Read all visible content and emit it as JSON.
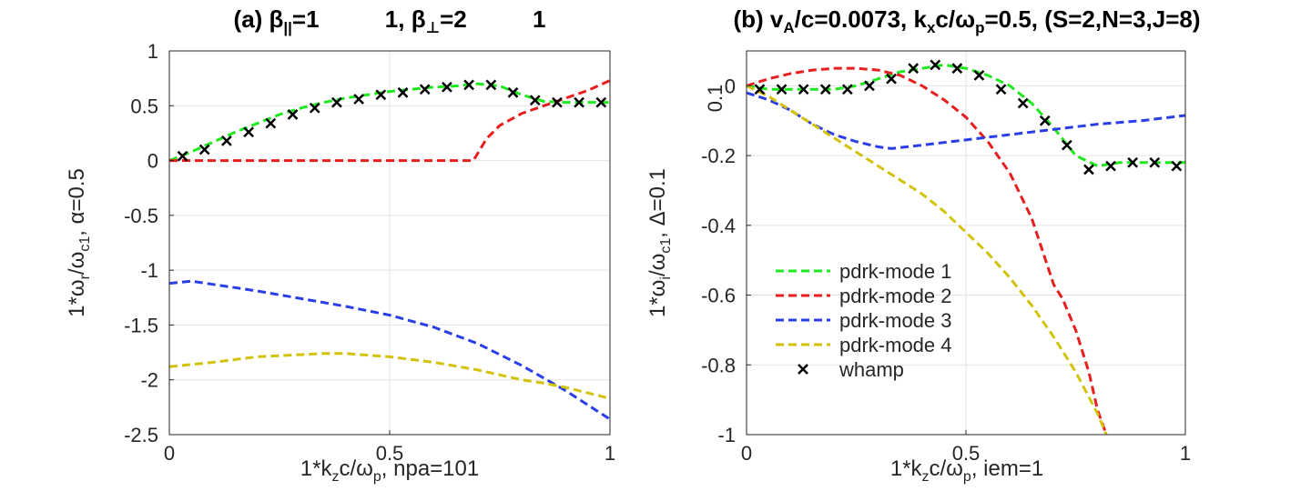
{
  "chart_data": [
    {
      "type": "line",
      "title": "(a) β||=1          1, β⊥=2          1",
      "title_parts": {
        "p1": "(a) β",
        "sub1": "||",
        "p2": "=1          1, β",
        "sub2": "⊥",
        "p3": "=2          1"
      },
      "xlabel": "1*k_z c/ω_p, npa=101",
      "xlabel_parts": {
        "p1": "1*k",
        "sub1": "z",
        "p2": "c/ω",
        "sub2": "p",
        "p3": ", npa=101"
      },
      "ylabel": "1*ω_r/ω_c1, α=0.5",
      "ylabel_parts": {
        "p1": "1*ω",
        "sub1": "r",
        "p2": "/ω",
        "sub2": "c1",
        "p3": ", α=0.5"
      },
      "xlim": [
        0,
        1
      ],
      "ylim": [
        -2.5,
        1
      ],
      "xticks": [
        0,
        0.5,
        1
      ],
      "xtick_labels": [
        "0",
        "0.5",
        "1"
      ],
      "yticks": [
        -2.5,
        -2,
        -1.5,
        -1,
        -0.5,
        0,
        0.5,
        1
      ],
      "ytick_labels": [
        "-2.5",
        "-2",
        "-1.5",
        "-1",
        "-0.5",
        "0",
        "0.5",
        "1"
      ],
      "grid": true,
      "series": [
        {
          "name": "pdrk-mode 1",
          "color": "#1ee81e",
          "style": "dashed",
          "x": [
            0,
            0.05,
            0.1,
            0.15,
            0.2,
            0.25,
            0.3,
            0.35,
            0.4,
            0.45,
            0.5,
            0.55,
            0.6,
            0.65,
            0.7,
            0.75,
            0.8,
            0.85,
            0.9,
            0.95,
            1.0
          ],
          "y": [
            0,
            0.08,
            0.17,
            0.26,
            0.34,
            0.42,
            0.48,
            0.53,
            0.57,
            0.6,
            0.63,
            0.65,
            0.67,
            0.68,
            0.7,
            0.68,
            0.6,
            0.54,
            0.53,
            0.53,
            0.53
          ]
        },
        {
          "name": "pdrk-mode 2",
          "color": "#e81e1e",
          "style": "dashed",
          "x": [
            0,
            0.1,
            0.2,
            0.3,
            0.4,
            0.5,
            0.6,
            0.69,
            0.72,
            0.75,
            0.8,
            0.85,
            0.9,
            0.95,
            1.0
          ],
          "y": [
            0,
            0,
            0,
            0,
            0,
            0,
            0,
            0,
            0.2,
            0.32,
            0.43,
            0.5,
            0.57,
            0.64,
            0.73
          ]
        },
        {
          "name": "pdrk-mode 3",
          "color": "#2a3ee8",
          "style": "dashed",
          "x": [
            0,
            0.05,
            0.1,
            0.2,
            0.3,
            0.4,
            0.5,
            0.6,
            0.7,
            0.8,
            0.9,
            1.0
          ],
          "y": [
            -1.12,
            -1.1,
            -1.13,
            -1.19,
            -1.26,
            -1.33,
            -1.41,
            -1.52,
            -1.67,
            -1.87,
            -2.1,
            -2.36
          ]
        },
        {
          "name": "pdrk-mode 4",
          "color": "#d2c20a",
          "style": "dashed",
          "x": [
            0,
            0.1,
            0.2,
            0.3,
            0.35,
            0.4,
            0.5,
            0.6,
            0.7,
            0.8,
            0.85,
            0.9,
            1.0
          ],
          "y": [
            -1.88,
            -1.84,
            -1.79,
            -1.77,
            -1.76,
            -1.76,
            -1.79,
            -1.84,
            -1.91,
            -2.0,
            -2.03,
            -2.07,
            -2.17
          ]
        },
        {
          "name": "whamp",
          "color": "#000000",
          "style": "marker-x",
          "x": [
            0.03,
            0.08,
            0.13,
            0.18,
            0.23,
            0.28,
            0.33,
            0.38,
            0.43,
            0.48,
            0.53,
            0.58,
            0.63,
            0.68,
            0.73,
            0.78,
            0.83,
            0.88,
            0.93,
            0.98
          ],
          "y": [
            0.04,
            0.1,
            0.18,
            0.26,
            0.34,
            0.42,
            0.48,
            0.53,
            0.56,
            0.6,
            0.62,
            0.65,
            0.67,
            0.69,
            0.69,
            0.62,
            0.55,
            0.53,
            0.53,
            0.53
          ]
        }
      ]
    },
    {
      "type": "line",
      "title": "(b) v_A/c=0.0073, k_x c/ω_p=0.5, (S=2,N=3,J=8)",
      "title_parts": {
        "p1": "(b) v",
        "sub1": "A",
        "p2": "/c=0.0073, k",
        "sub2": "x",
        "p3": "c/ω",
        "sub3": "p",
        "p4": "=0.5, (S=2,N=3,J=8)"
      },
      "xlabel": "1*k_z c/ω_p, iem=1",
      "xlabel_parts": {
        "p1": "1*k",
        "sub1": "z",
        "p2": "c/ω",
        "sub2": "p",
        "p3": ", iem=1"
      },
      "ylabel": "1*ω_i/ω_c1, Δ=0.1",
      "ylabel_parts": {
        "p1": "1*ω",
        "sub1": "i",
        "p2": "/ω",
        "sub2": "c1",
        "p3": ", Δ=0.1"
      },
      "xlim": [
        0,
        1
      ],
      "ylim": [
        -1,
        0.1
      ],
      "xticks": [
        0,
        0.5,
        1
      ],
      "xtick_labels": [
        "0",
        "0.5",
        "1"
      ],
      "yticks": [
        -1,
        -0.8,
        -0.6,
        -0.4,
        -0.2,
        0
      ],
      "ytick_labels": [
        "-1",
        "-0.8",
        "-0.6",
        "-0.4",
        "-0.2",
        "0"
      ],
      "extra_ylabel": "0.1",
      "grid": true,
      "legend_position": "lower-left",
      "series": [
        {
          "name": "pdrk-mode 1",
          "color": "#1ee81e",
          "style": "dashed",
          "x": [
            0,
            0.05,
            0.1,
            0.15,
            0.2,
            0.25,
            0.3,
            0.35,
            0.4,
            0.45,
            0.5,
            0.55,
            0.6,
            0.65,
            0.7,
            0.75,
            0.8,
            0.85,
            0.9,
            0.95,
            1.0
          ],
          "y": [
            0,
            -0.01,
            -0.01,
            -0.01,
            -0.01,
            0.0,
            0.02,
            0.04,
            0.05,
            0.06,
            0.05,
            0.03,
            0.0,
            -0.05,
            -0.12,
            -0.2,
            -0.23,
            -0.22,
            -0.22,
            -0.22,
            -0.22
          ]
        },
        {
          "name": "pdrk-mode 2",
          "color": "#e81e1e",
          "style": "dashed",
          "x": [
            0,
            0.05,
            0.1,
            0.15,
            0.2,
            0.25,
            0.3,
            0.35,
            0.4,
            0.45,
            0.5,
            0.55,
            0.6,
            0.65,
            0.7,
            0.72,
            0.75,
            0.78,
            0.8,
            0.82
          ],
          "y": [
            0,
            0.02,
            0.035,
            0.045,
            0.05,
            0.05,
            0.045,
            0.03,
            0.0,
            -0.04,
            -0.09,
            -0.16,
            -0.25,
            -0.38,
            -0.57,
            -0.61,
            -0.7,
            -0.82,
            -0.93,
            -1.0
          ]
        },
        {
          "name": "pdrk-mode 3",
          "color": "#2a3ee8",
          "style": "dashed",
          "x": [
            0,
            0.05,
            0.1,
            0.15,
            0.2,
            0.25,
            0.3,
            0.33,
            0.4,
            0.5,
            0.6,
            0.7,
            0.8,
            0.9,
            1.0
          ],
          "y": [
            -0.02,
            -0.04,
            -0.07,
            -0.11,
            -0.14,
            -0.16,
            -0.175,
            -0.18,
            -0.17,
            -0.155,
            -0.14,
            -0.125,
            -0.11,
            -0.1,
            -0.085
          ]
        },
        {
          "name": "pdrk-mode 4",
          "color": "#d2c20a",
          "style": "dashed",
          "x": [
            0,
            0.05,
            0.1,
            0.15,
            0.2,
            0.25,
            0.3,
            0.35,
            0.4,
            0.45,
            0.5,
            0.55,
            0.6,
            0.65,
            0.7,
            0.75,
            0.8,
            0.82
          ],
          "y": [
            0,
            -0.03,
            -0.07,
            -0.11,
            -0.15,
            -0.19,
            -0.23,
            -0.27,
            -0.31,
            -0.36,
            -0.42,
            -0.48,
            -0.55,
            -0.63,
            -0.72,
            -0.82,
            -0.94,
            -1.0
          ]
        },
        {
          "name": "whamp",
          "color": "#000000",
          "style": "marker-x",
          "x": [
            0.03,
            0.08,
            0.13,
            0.18,
            0.23,
            0.28,
            0.33,
            0.38,
            0.43,
            0.48,
            0.53,
            0.58,
            0.63,
            0.68,
            0.73,
            0.78,
            0.83,
            0.88,
            0.93,
            0.98
          ],
          "y": [
            -0.01,
            -0.01,
            -0.01,
            -0.01,
            -0.01,
            0.0,
            0.02,
            0.05,
            0.06,
            0.05,
            0.03,
            -0.01,
            -0.05,
            -0.1,
            -0.17,
            -0.24,
            -0.23,
            -0.22,
            -0.22,
            -0.23
          ]
        }
      ]
    }
  ]
}
